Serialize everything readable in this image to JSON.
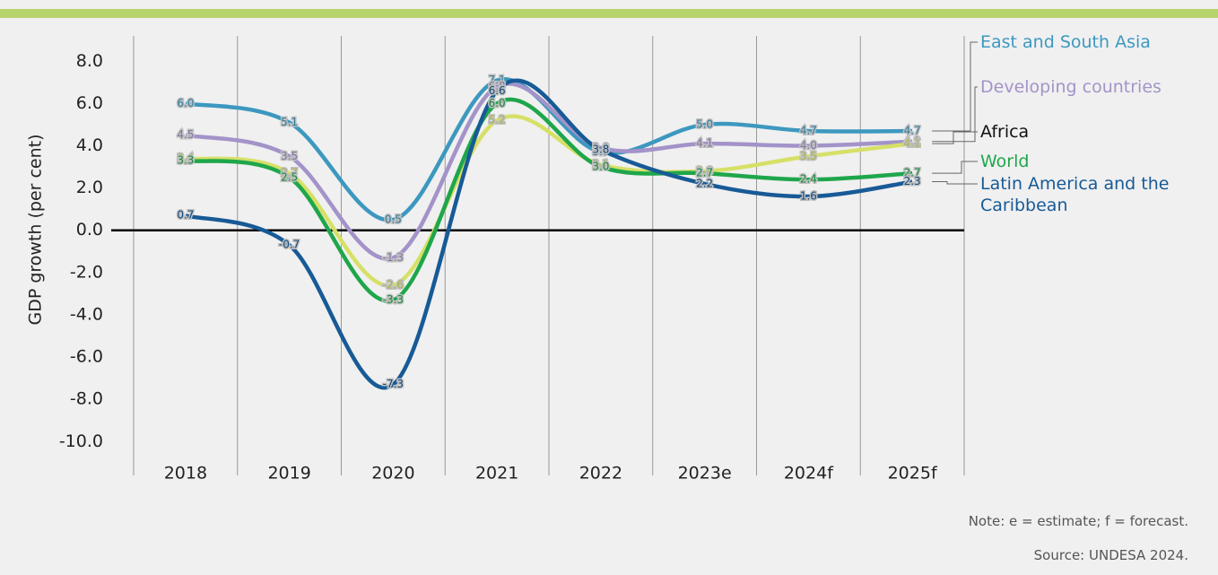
{
  "chart_data": {
    "type": "line",
    "y_label": "GDP growth (per cent)",
    "categories": [
      "2018",
      "2019",
      "2020",
      "2021",
      "2022",
      "2023e",
      "2024f",
      "2025f"
    ],
    "series": [
      {
        "name": "East and South Asia",
        "color": "#3d98bf",
        "values": [
          6.0,
          5.1,
          0.5,
          7.1,
          3.7,
          5.0,
          4.7,
          4.7
        ],
        "value_labels": [
          "6.0",
          "5.1",
          "0.5",
          "7.1",
          "3.7",
          "5.0",
          "4.7",
          "4.7"
        ]
      },
      {
        "name": "Developing countries",
        "color": "#a393c9",
        "values": [
          4.5,
          3.5,
          -1.3,
          6.8,
          3.9,
          4.1,
          4.0,
          4.2
        ],
        "value_labels": [
          "4.5",
          "3.5",
          "-1.3",
          "6.8",
          "3.9",
          "4.1",
          "4.0",
          "4.2"
        ]
      },
      {
        "name": "Africa",
        "color": "#d6e067",
        "values": [
          3.4,
          2.7,
          -2.6,
          5.2,
          3.1,
          2.8,
          3.5,
          4.1
        ],
        "value_labels": [
          "3.4",
          "2.7",
          "-2.6",
          "5.2",
          "3.1",
          "2.8",
          "3.5",
          "4.1"
        ]
      },
      {
        "name": "World",
        "color": "#1fa64b",
        "values": [
          3.3,
          2.5,
          -3.3,
          6.0,
          3.0,
          2.7,
          2.4,
          2.7
        ],
        "value_labels": [
          "3.3",
          "2.5",
          "-3.3",
          "6.0",
          "3.0",
          "2.7",
          "2.4",
          "2.7"
        ]
      },
      {
        "name": "Latin America and the Caribbean",
        "color": "#175a96",
        "values": [
          0.7,
          -0.7,
          -7.3,
          6.6,
          3.8,
          2.2,
          1.6,
          2.3
        ],
        "value_labels": [
          "0.7",
          "-0.7",
          "-7.3",
          "6.6",
          "3.8",
          "2.2",
          "1.6",
          "2.3"
        ]
      }
    ],
    "ylim": [
      -11.6,
      9.2
    ],
    "yticks": [
      {
        "value": 8,
        "label": "8.0"
      },
      {
        "value": 6,
        "label": "6.0"
      },
      {
        "value": 4,
        "label": "4.0"
      },
      {
        "value": 2,
        "label": "2.0"
      },
      {
        "value": 0,
        "label": "0.0"
      },
      {
        "value": -2,
        "label": "-2.0"
      },
      {
        "value": -4,
        "label": "-4.0"
      },
      {
        "value": -6,
        "label": "-6.0"
      },
      {
        "value": -8,
        "label": "-8.0"
      },
      {
        "value": -10,
        "label": "-10.0"
      }
    ],
    "note": "Note: e = estimate; f = forecast.",
    "source": "Source: UNDESA 2024."
  }
}
